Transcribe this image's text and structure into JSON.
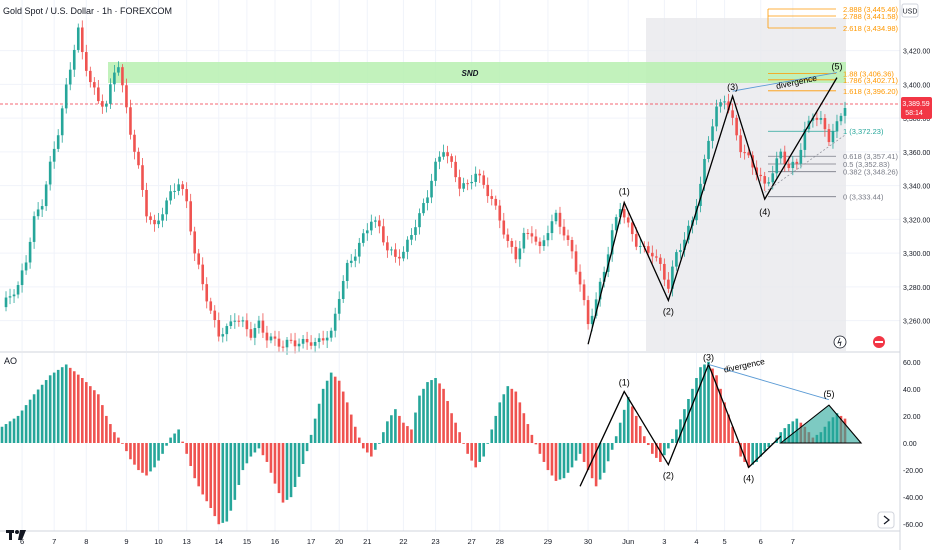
{
  "header": {
    "title": "Gold Spot / U.S. Dollar · 1h · FOREXCOM"
  },
  "indicator": {
    "label": "AO"
  },
  "currency": "USD",
  "price_axis": {
    "ticks": [
      "3,420.00",
      "3,400.00",
      "3,380.00",
      "3,360.00",
      "3,340.00",
      "3,320.00",
      "3,300.00",
      "3,280.00",
      "3,260.00"
    ]
  },
  "current_price": {
    "price": "3,389.59",
    "countdown": "58:14",
    "color": "#f23645"
  },
  "ao_axis": {
    "ticks": [
      "60.00",
      "40.00",
      "20.00",
      "0.00",
      "-20.00",
      "-40.00",
      "-60.00"
    ]
  },
  "time_axis": {
    "ticks": [
      "6",
      "7",
      "8",
      "9",
      "10",
      "13",
      "14",
      "15",
      "16",
      "17",
      "20",
      "21",
      "22",
      "23",
      "27",
      "28",
      "29",
      "30",
      "Jun",
      "3",
      "4",
      "5",
      "6",
      "7"
    ]
  },
  "supply_zone": {
    "label": "SND"
  },
  "fib_levels": [
    "2.888 (3,445.46)",
    "2.788 (3,441.58)",
    "2.618 (3,434.98)",
    "1.88 (3,406.36)",
    "1.786 (3,402.71)",
    "1.618 (3,396.20)",
    "1 (3,372.23)",
    "0.618 (3,357.41)",
    "0.5 (3,352.83)",
    "0.382 (3,348.26)",
    "0 (3,333.44)"
  ],
  "waves": {
    "w1": "(1)",
    "w2": "(2)",
    "w3": "(3)",
    "w4": "(4)",
    "w5": "(5)"
  },
  "annotations": {
    "divergence": "divergence"
  },
  "colors": {
    "up": "#26a69a",
    "down": "#ef5350",
    "zone": "#b7f0b0",
    "fib": "#ff9800",
    "line": "#000000",
    "accent_red": "#f23645"
  },
  "chart_data": {
    "type": "candlestick",
    "title": "Gold Spot / U.S. Dollar · 1h · FOREXCOM",
    "ylim": [
      3242,
      3450
    ],
    "price_path": [
      [
        0,
        3268
      ],
      [
        2,
        3275
      ],
      [
        4,
        3280
      ],
      [
        6,
        3296
      ],
      [
        8,
        3320
      ],
      [
        10,
        3330
      ],
      [
        12,
        3352
      ],
      [
        14,
        3372
      ],
      [
        16,
        3398
      ],
      [
        18,
        3422
      ],
      [
        19,
        3432
      ],
      [
        20,
        3418
      ],
      [
        22,
        3402
      ],
      [
        24,
        3390
      ],
      [
        26,
        3388
      ],
      [
        28,
        3408
      ],
      [
        29,
        3412
      ],
      [
        30,
        3398
      ],
      [
        32,
        3372
      ],
      [
        34,
        3350
      ],
      [
        36,
        3324
      ],
      [
        38,
        3315
      ],
      [
        40,
        3325
      ],
      [
        42,
        3335
      ],
      [
        44,
        3342
      ],
      [
        46,
        3330
      ],
      [
        48,
        3300
      ],
      [
        50,
        3282
      ],
      [
        52,
        3265
      ],
      [
        54,
        3252
      ],
      [
        56,
        3255
      ],
      [
        58,
        3262
      ],
      [
        60,
        3258
      ],
      [
        62,
        3252
      ],
      [
        64,
        3258
      ],
      [
        66,
        3250
      ],
      [
        68,
        3248
      ],
      [
        70,
        3245
      ],
      [
        72,
        3248
      ],
      [
        74,
        3246
      ],
      [
        76,
        3248
      ],
      [
        78,
        3246
      ],
      [
        80,
        3250
      ],
      [
        82,
        3252
      ],
      [
        84,
        3275
      ],
      [
        86,
        3292
      ],
      [
        88,
        3300
      ],
      [
        90,
        3310
      ],
      [
        92,
        3320
      ],
      [
        94,
        3315
      ],
      [
        96,
        3302
      ],
      [
        98,
        3298
      ],
      [
        100,
        3300
      ],
      [
        102,
        3312
      ],
      [
        104,
        3322
      ],
      [
        106,
        3335
      ],
      [
        108,
        3352
      ],
      [
        110,
        3362
      ],
      [
        112,
        3352
      ],
      [
        114,
        3340
      ],
      [
        116,
        3340
      ],
      [
        118,
        3348
      ],
      [
        120,
        3340
      ],
      [
        122,
        3332
      ],
      [
        124,
        3320
      ],
      [
        126,
        3306
      ],
      [
        128,
        3298
      ],
      [
        130,
        3310
      ],
      [
        132,
        3312
      ],
      [
        134,
        3302
      ],
      [
        136,
        3314
      ],
      [
        138,
        3322
      ],
      [
        140,
        3312
      ],
      [
        142,
        3300
      ],
      [
        144,
        3282
      ],
      [
        146,
        3258
      ],
      [
        148,
        3272
      ],
      [
        150,
        3290
      ],
      [
        152,
        3312
      ],
      [
        154,
        3328
      ],
      [
        156,
        3316
      ],
      [
        158,
        3306
      ],
      [
        160,
        3302
      ],
      [
        162,
        3300
      ],
      [
        164,
        3292
      ],
      [
        166,
        3280
      ],
      [
        168,
        3300
      ],
      [
        170,
        3308
      ],
      [
        172,
        3320
      ],
      [
        174,
        3340
      ],
      [
        176,
        3368
      ],
      [
        178,
        3385
      ],
      [
        180,
        3392
      ],
      [
        182,
        3378
      ],
      [
        184,
        3362
      ],
      [
        186,
        3356
      ],
      [
        188,
        3348
      ],
      [
        190,
        3340
      ],
      [
        192,
        3348
      ],
      [
        194,
        3360
      ],
      [
        196,
        3350
      ],
      [
        198,
        3354
      ],
      [
        200,
        3372
      ],
      [
        202,
        3382
      ],
      [
        204,
        3378
      ],
      [
        206,
        3368
      ],
      [
        208,
        3376
      ],
      [
        210,
        3388
      ]
    ],
    "ao_path": [
      [
        0,
        12
      ],
      [
        4,
        20
      ],
      [
        8,
        36
      ],
      [
        12,
        50
      ],
      [
        16,
        58
      ],
      [
        20,
        48
      ],
      [
        24,
        36
      ],
      [
        26,
        20
      ],
      [
        28,
        8
      ],
      [
        30,
        0
      ],
      [
        32,
        -12
      ],
      [
        34,
        -20
      ],
      [
        36,
        -24
      ],
      [
        38,
        -18
      ],
      [
        40,
        -8
      ],
      [
        42,
        4
      ],
      [
        44,
        10
      ],
      [
        46,
        -8
      ],
      [
        48,
        -26
      ],
      [
        50,
        -38
      ],
      [
        52,
        -48
      ],
      [
        54,
        -60
      ],
      [
        56,
        -58
      ],
      [
        58,
        -42
      ],
      [
        60,
        -20
      ],
      [
        62,
        -10
      ],
      [
        64,
        -4
      ],
      [
        66,
        -14
      ],
      [
        68,
        -30
      ],
      [
        70,
        -44
      ],
      [
        72,
        -40
      ],
      [
        74,
        -25
      ],
      [
        76,
        -6
      ],
      [
        78,
        18
      ],
      [
        80,
        40
      ],
      [
        82,
        52
      ],
      [
        84,
        46
      ],
      [
        86,
        30
      ],
      [
        88,
        12
      ],
      [
        90,
        -4
      ],
      [
        92,
        -10
      ],
      [
        94,
        0
      ],
      [
        96,
        16
      ],
      [
        98,
        25
      ],
      [
        100,
        15
      ],
      [
        102,
        10
      ],
      [
        104,
        35
      ],
      [
        106,
        45
      ],
      [
        108,
        48
      ],
      [
        110,
        40
      ],
      [
        112,
        22
      ],
      [
        114,
        8
      ],
      [
        116,
        -8
      ],
      [
        118,
        -18
      ],
      [
        120,
        -10
      ],
      [
        122,
        10
      ],
      [
        124,
        30
      ],
      [
        126,
        42
      ],
      [
        128,
        38
      ],
      [
        130,
        22
      ],
      [
        132,
        6
      ],
      [
        134,
        -8
      ],
      [
        136,
        -20
      ],
      [
        138,
        -28
      ],
      [
        140,
        -26
      ],
      [
        142,
        -18
      ],
      [
        144,
        -8
      ],
      [
        146,
        -20
      ],
      [
        148,
        -32
      ],
      [
        150,
        -22
      ],
      [
        152,
        -5
      ],
      [
        154,
        15
      ],
      [
        156,
        34
      ],
      [
        158,
        20
      ],
      [
        160,
        5
      ],
      [
        162,
        -8
      ],
      [
        164,
        -14
      ],
      [
        166,
        -4
      ],
      [
        168,
        10
      ],
      [
        170,
        25
      ],
      [
        172,
        40
      ],
      [
        174,
        56
      ],
      [
        176,
        60
      ],
      [
        178,
        50
      ],
      [
        180,
        30
      ],
      [
        182,
        12
      ],
      [
        184,
        -10
      ],
      [
        186,
        -18
      ],
      [
        188,
        -14
      ],
      [
        190,
        -6
      ],
      [
        192,
        0
      ],
      [
        194,
        8
      ],
      [
        196,
        14
      ],
      [
        198,
        18
      ],
      [
        200,
        12
      ],
      [
        202,
        4
      ],
      [
        204,
        8
      ],
      [
        206,
        16
      ],
      [
        208,
        22
      ],
      [
        210,
        18
      ]
    ],
    "ao_ylim": [
      -65,
      65
    ],
    "zone": {
      "price_low": 3402,
      "price_high": 3415,
      "label": "SND"
    }
  }
}
